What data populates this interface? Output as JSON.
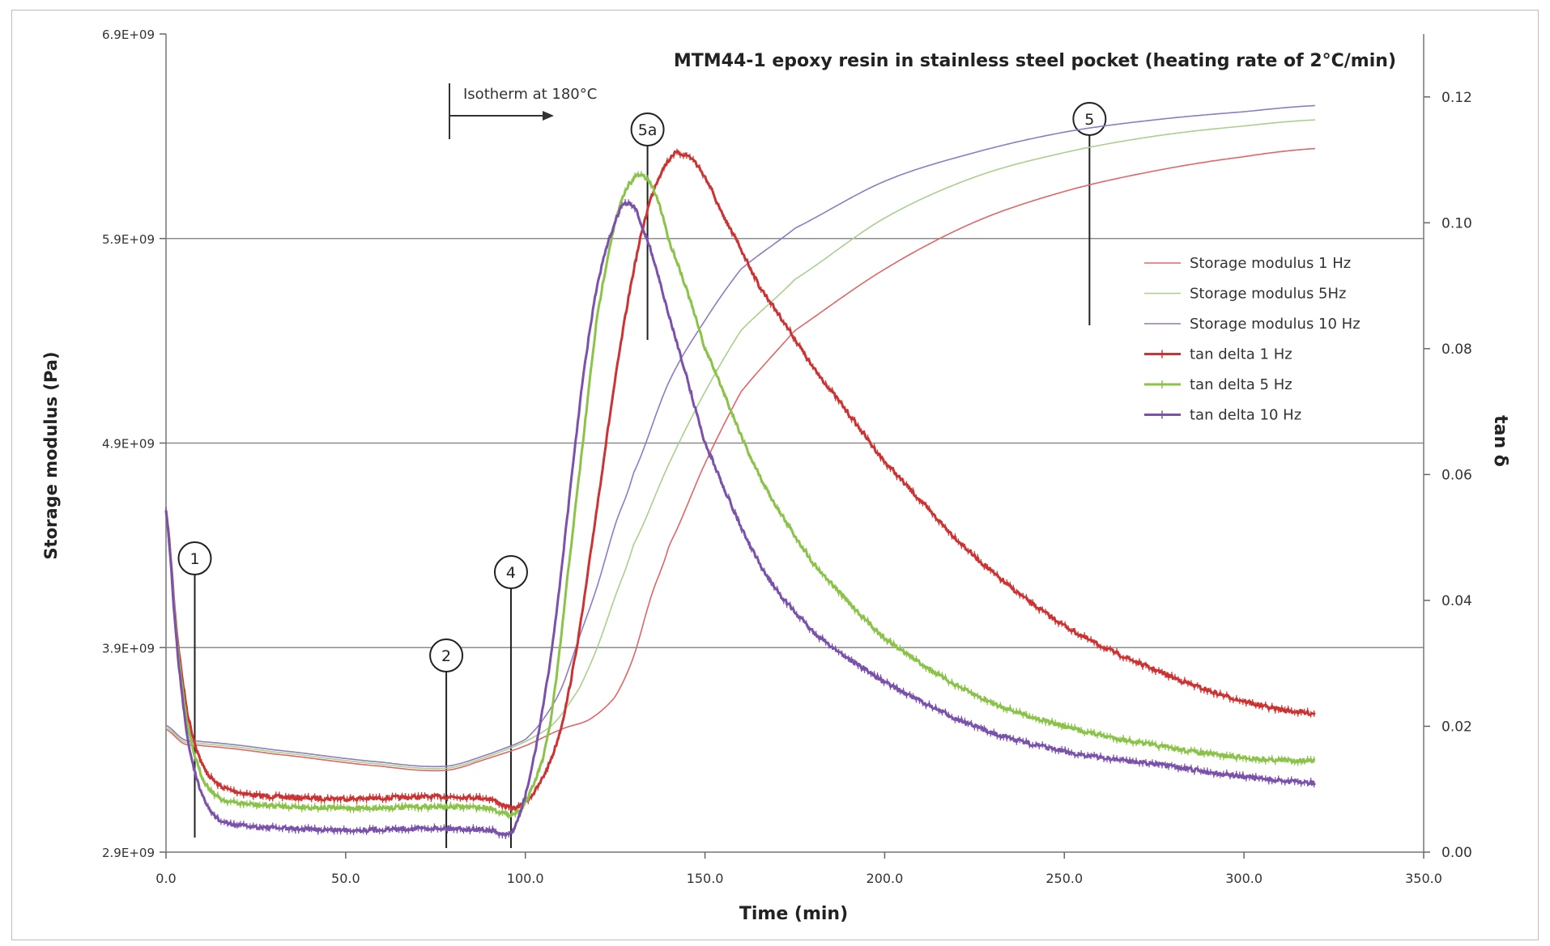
{
  "chart_data": {
    "type": "line",
    "title": "MTM44-1 epoxy resin in stainless steel pocket (heating rate of 2°C/min)",
    "xlabel": "Time (min)",
    "ylabel": "Storage modulus (Pa)",
    "y2label": "tan δ",
    "xlim": [
      0,
      350
    ],
    "ylim": [
      2900000000,
      6900000000
    ],
    "y2lim": [
      0,
      0.13
    ],
    "x_ticks": [
      "0.0",
      "50.0",
      "100.0",
      "150.0",
      "200.0",
      "250.0",
      "300.0",
      "350.0"
    ],
    "y_ticks": [
      "2.9E+09",
      "3.9E+09",
      "4.9E+09",
      "5.9E+09",
      "6.9E+09"
    ],
    "y2_ticks": [
      "0.00",
      "0.02",
      "0.04",
      "0.06",
      "0.08",
      "0.10",
      "0.12"
    ],
    "grid": "horizontal",
    "legend_position": "right",
    "annotation": "Isotherm at 180°C",
    "markers": [
      {
        "label": "1",
        "x": 8
      },
      {
        "label": "2",
        "x": 78
      },
      {
        "label": "4",
        "x": 96
      },
      {
        "label": "5a",
        "x": 134
      },
      {
        "label": "5",
        "x": 257
      }
    ],
    "series": [
      {
        "name": "Storage modulus 1 Hz",
        "axis": "left",
        "color": "#e06666",
        "x": [
          0,
          5,
          10,
          30,
          60,
          78,
          90,
          100,
          110,
          118,
          125,
          130,
          135,
          140,
          150,
          160,
          175,
          200,
          225,
          250,
          275,
          300,
          320
        ],
        "y": [
          3500000000,
          3430000000,
          3420000000,
          3380000000,
          3320000000,
          3300000000,
          3360000000,
          3420000000,
          3500000000,
          3550000000,
          3660000000,
          3850000000,
          4150000000,
          4400000000,
          4800000000,
          5150000000,
          5450000000,
          5750000000,
          5980000000,
          6130000000,
          6230000000,
          6300000000,
          6340000000
        ]
      },
      {
        "name": "Storage modulus 5Hz",
        "axis": "left",
        "color": "#a9d08e",
        "x": [
          0,
          5,
          10,
          30,
          60,
          78,
          90,
          100,
          108,
          115,
          120,
          125,
          130,
          140,
          150,
          160,
          175,
          200,
          225,
          250,
          275,
          300,
          320
        ],
        "y": [
          3510000000,
          3440000000,
          3430000000,
          3390000000,
          3330000000,
          3310000000,
          3370000000,
          3440000000,
          3530000000,
          3700000000,
          3900000000,
          4150000000,
          4400000000,
          4800000000,
          5150000000,
          5450000000,
          5700000000,
          6000000000,
          6200000000,
          6320000000,
          6400000000,
          6450000000,
          6480000000
        ]
      },
      {
        "name": "Storage modulus 10 Hz",
        "axis": "left",
        "color": "#8e7cc3",
        "x": [
          0,
          5,
          10,
          30,
          60,
          78,
          90,
          100,
          105,
          110,
          115,
          120,
          125,
          130,
          140,
          150,
          160,
          175,
          200,
          225,
          250,
          275,
          300,
          320
        ],
        "y": [
          3520000000,
          3450000000,
          3440000000,
          3400000000,
          3340000000,
          3320000000,
          3380000000,
          3450000000,
          3550000000,
          3700000000,
          3950000000,
          4200000000,
          4500000000,
          4750000000,
          5200000000,
          5500000000,
          5750000000,
          5950000000,
          6180000000,
          6320000000,
          6420000000,
          6480000000,
          6520000000,
          6550000000
        ]
      },
      {
        "name": "tan delta 1 Hz",
        "axis": "right",
        "color": "#cc3333",
        "x": [
          0,
          3,
          6,
          10,
          15,
          25,
          50,
          75,
          90,
          96,
          100,
          105,
          110,
          115,
          120,
          125,
          130,
          135,
          140,
          143,
          148,
          155,
          165,
          180,
          200,
          225,
          250,
          275,
          300,
          320
        ],
        "y": [
          0.054,
          0.035,
          0.022,
          0.014,
          0.0105,
          0.009,
          0.0085,
          0.0088,
          0.0085,
          0.007,
          0.008,
          0.012,
          0.02,
          0.035,
          0.055,
          0.075,
          0.092,
          0.104,
          0.11,
          0.111,
          0.109,
          0.101,
          0.09,
          0.077,
          0.062,
          0.047,
          0.036,
          0.029,
          0.024,
          0.022
        ]
      },
      {
        "name": "tan delta 5 Hz",
        "axis": "right",
        "color": "#8bc34a",
        "x": [
          0,
          3,
          6,
          10,
          15,
          25,
          50,
          75,
          90,
          96,
          100,
          105,
          108,
          112,
          116,
          120,
          125,
          130,
          135,
          140,
          150,
          165,
          180,
          200,
          225,
          250,
          275,
          300,
          320
        ],
        "y": [
          0.054,
          0.034,
          0.02,
          0.012,
          0.0085,
          0.0075,
          0.007,
          0.0072,
          0.007,
          0.006,
          0.008,
          0.015,
          0.025,
          0.045,
          0.065,
          0.085,
          0.1,
          0.107,
          0.106,
          0.097,
          0.08,
          0.06,
          0.046,
          0.034,
          0.025,
          0.02,
          0.017,
          0.015,
          0.0145
        ]
      },
      {
        "name": "tan delta 10 Hz",
        "axis": "right",
        "color": "#7b52ab",
        "x": [
          0,
          3,
          6,
          10,
          15,
          25,
          50,
          75,
          90,
          96,
          100,
          104,
          108,
          112,
          116,
          120,
          125,
          128,
          132,
          140,
          150,
          165,
          180,
          200,
          225,
          250,
          275,
          300,
          320
        ],
        "y": [
          0.054,
          0.033,
          0.018,
          0.009,
          0.005,
          0.004,
          0.0035,
          0.0038,
          0.0035,
          0.003,
          0.009,
          0.02,
          0.035,
          0.055,
          0.075,
          0.09,
          0.1,
          0.103,
          0.1,
          0.085,
          0.065,
          0.046,
          0.035,
          0.027,
          0.02,
          0.016,
          0.014,
          0.012,
          0.011
        ]
      }
    ]
  }
}
